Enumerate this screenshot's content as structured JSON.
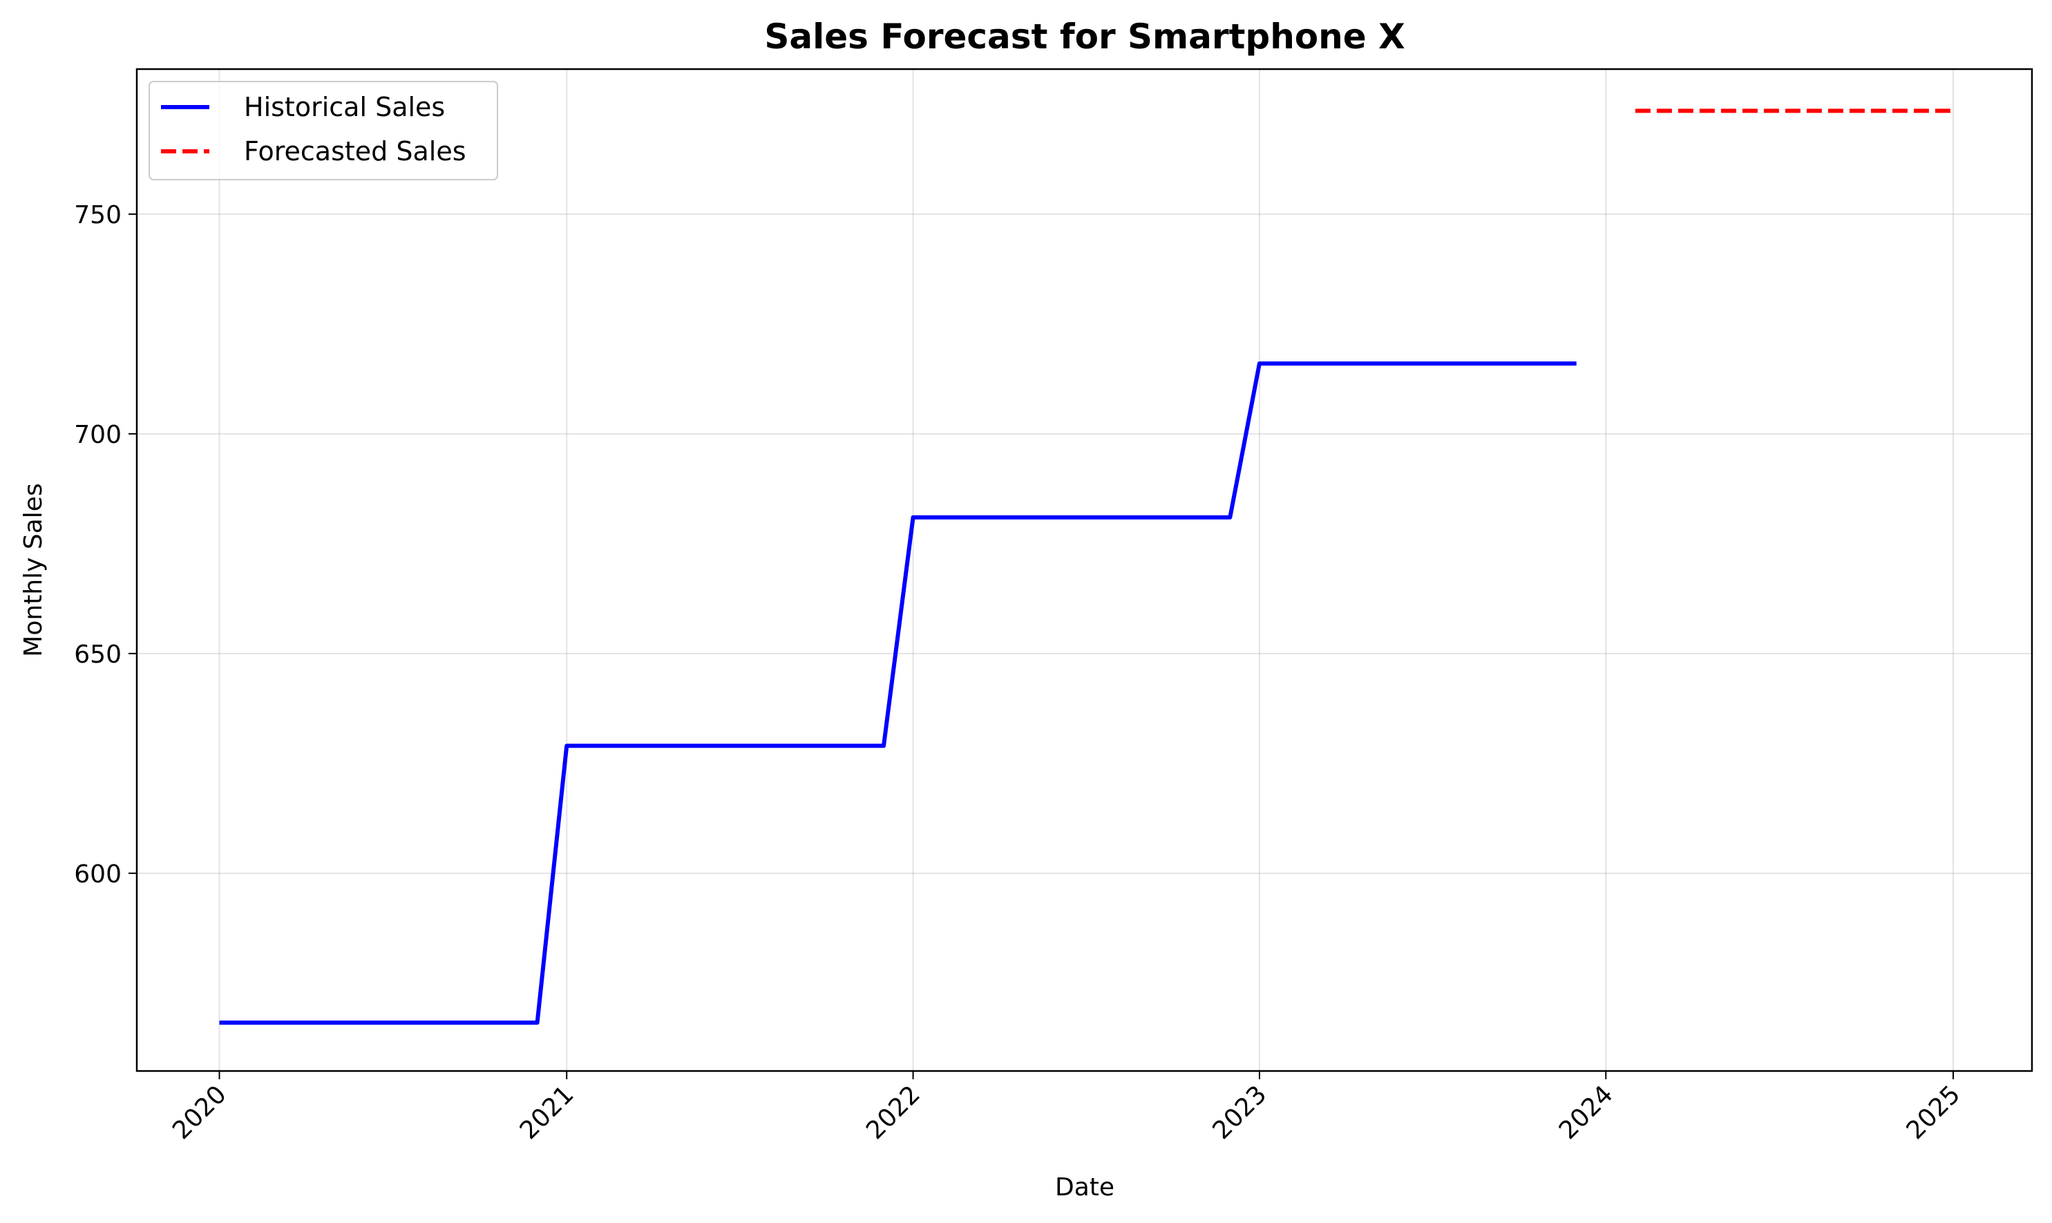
{
  "chart_data": {
    "type": "line",
    "title": "Sales Forecast for Smartphone X",
    "xlabel": "Date",
    "ylabel": "Monthly Sales",
    "xlim": [
      "2019-10-06",
      "2025-03-25"
    ],
    "ylim": [
      555,
      783
    ],
    "x_ticks": [
      "2020",
      "2021",
      "2022",
      "2023",
      "2024",
      "2025"
    ],
    "y_ticks": [
      600,
      650,
      700,
      750
    ],
    "grid": true,
    "legend_position": "top-left",
    "series": [
      {
        "name": "Historical Sales",
        "style": "solid",
        "color": "#0000ff",
        "points": [
          {
            "x": "2020-01-01",
            "y": 566
          },
          {
            "x": "2020-12-01",
            "y": 566
          },
          {
            "x": "2021-01-01",
            "y": 629
          },
          {
            "x": "2021-12-01",
            "y": 629
          },
          {
            "x": "2022-01-01",
            "y": 681
          },
          {
            "x": "2022-12-01",
            "y": 681
          },
          {
            "x": "2023-01-01",
            "y": 716
          },
          {
            "x": "2023-12-01",
            "y": 716
          }
        ]
      },
      {
        "name": "Forecasted Sales",
        "style": "dashed",
        "color": "#ff0000",
        "points": [
          {
            "x": "2024-02-01",
            "y": 773.5
          },
          {
            "x": "2025-01-01",
            "y": 773.5
          }
        ]
      }
    ]
  }
}
